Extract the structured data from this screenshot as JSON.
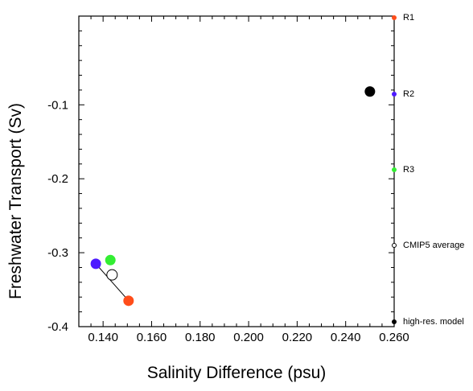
{
  "chart_data": {
    "type": "scatter",
    "xlabel": "Salinity Difference (psu)",
    "ylabel": "Freshwater Transport (Sv)",
    "xlim": [
      0.13,
      0.26
    ],
    "ylim": [
      -0.4,
      0.02
    ],
    "x_ticks": [
      0.14,
      0.16,
      0.18,
      0.2,
      0.22,
      0.24,
      0.26
    ],
    "x_tick_labels": [
      "0.140",
      "0.160",
      "0.180",
      "0.200",
      "0.220",
      "0.240",
      "0.260"
    ],
    "y_ticks": [
      -0.1,
      -0.2,
      -0.3,
      -0.4
    ],
    "y_tick_labels": [
      "-0.1",
      "-0.2",
      "-0.3",
      "-0.4"
    ],
    "grid": false,
    "legend_position": "right, outside",
    "series": [
      {
        "name": "R1",
        "color": "#ff4d1a",
        "points": [
          {
            "x": 0.1505,
            "y": -0.365
          }
        ]
      },
      {
        "name": "R2",
        "color": "#4d1aff",
        "points": [
          {
            "x": 0.137,
            "y": -0.315
          }
        ]
      },
      {
        "name": "R3",
        "color": "#33ee33",
        "points": [
          {
            "x": 0.143,
            "y": -0.31
          }
        ]
      },
      {
        "name": "CMIP5 average",
        "color": "#000000",
        "hollow": true,
        "points": [
          {
            "x": 0.1437,
            "y": -0.33
          }
        ]
      },
      {
        "name": "high-res. model",
        "color": "#000000",
        "points": [
          {
            "x": 0.25,
            "y": -0.082
          }
        ]
      }
    ],
    "lines": [
      {
        "from": {
          "x": 0.137,
          "y": -0.315
        },
        "to": {
          "x": 0.1505,
          "y": -0.365
        },
        "color": "#000000"
      }
    ]
  }
}
